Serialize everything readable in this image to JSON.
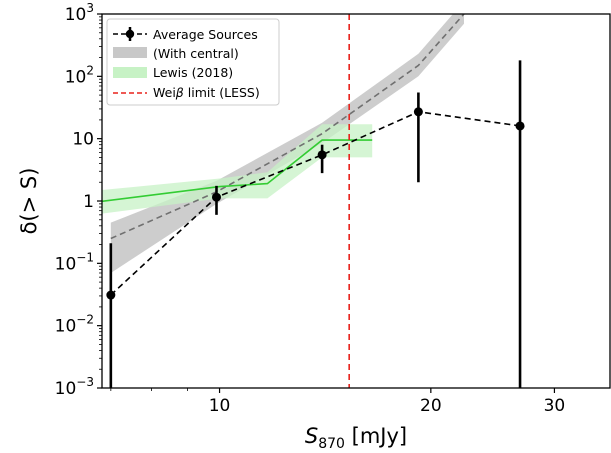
{
  "chart_data": {
    "type": "line",
    "xscale": "log",
    "yscale": "log",
    "xlim": [
      6.8,
      36
    ],
    "ylim": [
      0.001,
      1000
    ],
    "xlabel_main": "S",
    "xlabel_sub": "870",
    "xlabel_rest": " [mJy]",
    "ylabel_main": "δ(> S)",
    "x_ticks": [
      {
        "value": 10,
        "label": "10"
      },
      {
        "value": 20,
        "label": "20"
      },
      {
        "value": 30,
        "label": "30"
      }
    ],
    "y_ticks": [
      {
        "value": 0.001,
        "base": "10",
        "exp": "−3"
      },
      {
        "value": 0.01,
        "base": "10",
        "exp": "−2"
      },
      {
        "value": 0.1,
        "base": "10",
        "exp": "−1"
      },
      {
        "value": 1,
        "base": "1",
        "exp": ""
      },
      {
        "value": 10,
        "base": "10",
        "exp": ""
      },
      {
        "value": 100,
        "base": "10",
        "exp": "2"
      },
      {
        "value": 1000,
        "base": "10",
        "exp": "3"
      }
    ],
    "series": [
      {
        "name": "Average Sources",
        "kind": "errorbar",
        "color": "#000000",
        "x": [
          7.0,
          9.9,
          14.0,
          19.2,
          26.8
        ],
        "y": [
          0.031,
          1.15,
          5.5,
          27,
          16
        ],
        "y_low": [
          0.001,
          0.6,
          2.8,
          2.0,
          0.001
        ],
        "y_high": [
          0.21,
          1.75,
          8.0,
          55,
          180
        ]
      },
      {
        "name": "(With central)",
        "kind": "band-with-line",
        "band_color": "#c8c8c8",
        "line_color": "#707070",
        "x": [
          7.0,
          9.9,
          14.0,
          19.2,
          22.3
        ],
        "y": [
          0.25,
          1.4,
          12,
          150,
          1000
        ],
        "y_low": [
          0.07,
          0.9,
          8.5,
          100,
          700
        ],
        "y_high": [
          0.45,
          2.1,
          18,
          230,
          1600
        ]
      },
      {
        "name": "Lewis (2018)",
        "kind": "band-with-line",
        "band_color": "#c7f2c5",
        "line_color": "#33cc33",
        "x": [
          6.6,
          10.0,
          11.7,
          14.0,
          16.5
        ],
        "y": [
          0.95,
          1.7,
          1.9,
          9.5,
          9.5
        ],
        "y_low": [
          0.6,
          1.1,
          1.1,
          5.0,
          5.0
        ],
        "y_high": [
          1.45,
          2.3,
          2.9,
          17,
          17
        ]
      },
      {
        "name": "Weiβ limit (LESS)",
        "kind": "vline",
        "color": "#e8221c",
        "x": 15.3
      }
    ],
    "legend": {
      "placement": "top-left",
      "entries": [
        {
          "main": "Average Sources",
          "greek": ""
        },
        {
          "main": "(With central)",
          "greek": ""
        },
        {
          "main": "Lewis (2018)",
          "greek": ""
        },
        {
          "main": "Wei",
          "greek": "β",
          "tail": " limit (LESS)"
        }
      ]
    }
  }
}
